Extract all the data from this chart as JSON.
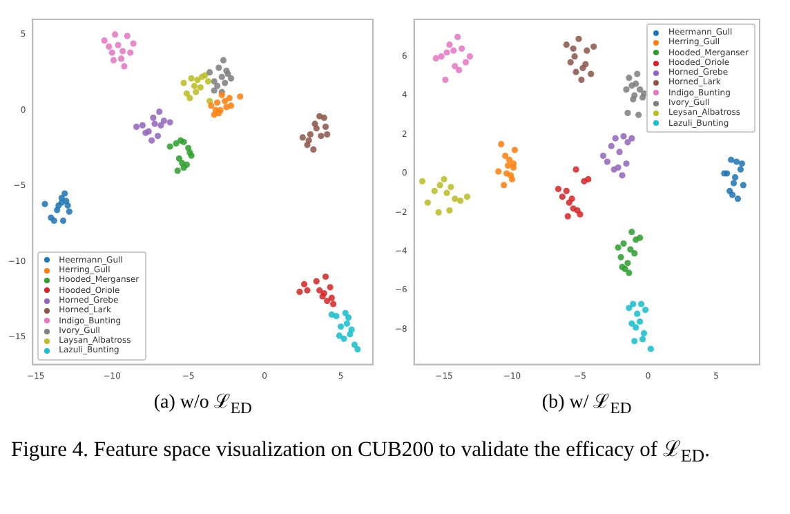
{
  "chart_data": [
    {
      "type": "scatter",
      "xlabel": "(a) w/o ℒ$_{ED}$",
      "marker": "circle",
      "legend": "bottom left",
      "annotations": [
        "Figure 4.  Feature space visualization on CUB200 to validate the efficacy of ℒ$_{ED}$."
      ],
      "xlim": [
        -15.2,
        7.1
      ],
      "xticks": [
        -15,
        -10,
        -5,
        0,
        5
      ],
      "ylim": [
        -16.8,
        6
      ],
      "yticks": [
        -15,
        -10,
        -5,
        0,
        5
      ],
      "series": [
        {
          "name": "Heermann_Gull",
          "color": "#1f77b4",
          "x": [
            -14.4,
            -14.0,
            -13.8,
            -13.5,
            -13.3,
            -13.1,
            -13.0,
            -12.9,
            -13.2,
            -13.6,
            -12.8,
            -13.3
          ],
          "values": [
            -6.2,
            -7.1,
            -7.3,
            -6.3,
            -5.8,
            -5.5,
            -6.0,
            -6.3,
            -7.3,
            -6.6,
            -6.7,
            -6.1
          ]
        },
        {
          "name": "Herring_Gull",
          "color": "#ff7f0e",
          "x": [
            -3.5,
            -3.3,
            -3.1,
            -2.9,
            -2.3,
            -3.0,
            -2.5,
            -2.2,
            -1.6,
            -2.8,
            -3.2,
            -2.6
          ],
          "values": [
            0.3,
            -0.3,
            0.5,
            0.0,
            0.8,
            -0.2,
            0.2,
            0.3,
            0.9,
            1.0,
            0.0,
            0.6
          ]
        },
        {
          "name": "Hooded_Merganser",
          "color": "#2ca02c",
          "x": [
            -6.2,
            -5.8,
            -5.5,
            -5.3,
            -5.0,
            -4.8,
            -5.6,
            -5.4,
            -5.1,
            -5.7,
            -4.9,
            -5.3
          ],
          "values": [
            -2.4,
            -2.2,
            -2.0,
            -2.1,
            -2.5,
            -3.0,
            -3.2,
            -3.5,
            -3.6,
            -4.0,
            -2.8,
            -3.8
          ]
        },
        {
          "name": "Hooded_Oriole",
          "color": "#d62728",
          "x": [
            2.3,
            2.6,
            2.8,
            3.4,
            3.6,
            3.8,
            4.0,
            4.1,
            4.3,
            4.4,
            4.5,
            3.9
          ],
          "values": [
            -12.0,
            -11.5,
            -11.9,
            -11.3,
            -11.9,
            -12.3,
            -11.0,
            -12.6,
            -11.7,
            -12.4,
            -12.8,
            -12.1
          ]
        },
        {
          "name": "Horned_Grebe",
          "color": "#9467bd",
          "x": [
            -8.4,
            -8.0,
            -7.6,
            -7.2,
            -6.9,
            -6.6,
            -6.2,
            -7.4,
            -7.0,
            -7.8,
            -6.8,
            -7.3
          ],
          "values": [
            -1.1,
            -1.0,
            -1.4,
            -0.9,
            -0.1,
            -0.7,
            -0.8,
            -2.0,
            -1.7,
            -1.5,
            -1.0,
            -0.5
          ]
        },
        {
          "name": "Horned_Lark",
          "color": "#8c564b",
          "x": [
            2.5,
            2.8,
            3.0,
            3.2,
            3.4,
            3.6,
            3.7,
            3.9,
            4.0,
            4.1,
            3.3,
            2.9
          ],
          "values": [
            -1.8,
            -2.3,
            -1.6,
            -2.6,
            -1.2,
            -0.4,
            -1.7,
            -0.5,
            -1.1,
            -1.6,
            -0.9,
            -2.0
          ]
        },
        {
          "name": "Indigo_Bunting",
          "color": "#e377c2",
          "x": [
            -10.5,
            -10.2,
            -10.0,
            -9.8,
            -9.6,
            -9.3,
            -9.0,
            -8.8,
            -8.6,
            -9.4,
            -9.9,
            -9.2
          ],
          "values": [
            4.6,
            4.2,
            3.8,
            5.0,
            4.3,
            3.9,
            4.9,
            3.8,
            4.4,
            3.4,
            3.3,
            2.9
          ]
        },
        {
          "name": "Ivory_Gull",
          "color": "#7f7f7f",
          "x": [
            -3.6,
            -3.3,
            -3.0,
            -2.8,
            -2.6,
            -2.4,
            -2.2,
            -3.3,
            -2.7,
            -3.1,
            -2.5,
            -2.8
          ],
          "values": [
            2.5,
            1.9,
            2.8,
            2.2,
            1.8,
            2.4,
            2.1,
            1.3,
            3.3,
            1.6,
            2.6,
            1.2
          ]
        },
        {
          "name": "Laysan_Albatross",
          "color": "#bcbd22",
          "x": [
            -5.3,
            -5.1,
            -4.9,
            -4.6,
            -4.4,
            -4.2,
            -3.9,
            -3.7,
            -4.5,
            -4.8,
            -4.1,
            -3.6
          ],
          "values": [
            1.8,
            1.1,
            0.8,
            1.6,
            2.0,
            1.5,
            2.3,
            1.9,
            1.2,
            2.1,
            2.2,
            0.6
          ]
        },
        {
          "name": "Lazuli_Bunting",
          "color": "#17becf",
          "x": [
            4.4,
            4.7,
            5.0,
            5.3,
            5.5,
            5.7,
            4.9,
            5.2,
            5.6,
            5.9,
            6.1,
            5.4
          ],
          "values": [
            -13.5,
            -13.6,
            -14.3,
            -13.4,
            -13.7,
            -14.5,
            -14.9,
            -15.1,
            -14.8,
            -15.5,
            -15.8,
            -14.1
          ]
        }
      ]
    },
    {
      "type": "scatter",
      "xlabel": "(b) w/ ℒ$_{ED}$",
      "marker": "circle",
      "legend": "top right",
      "xlim": [
        -17.2,
        8.2
      ],
      "xticks": [
        -15,
        -10,
        -5,
        0,
        5
      ],
      "ylim": [
        -9.8,
        7.9
      ],
      "yticks": [
        -8,
        -6,
        -4,
        -2,
        0,
        2,
        4,
        6
      ],
      "series": [
        {
          "name": "Heermann_Gull",
          "color": "#1f77b4",
          "x": [
            5.6,
            5.8,
            6.1,
            6.3,
            6.5,
            6.8,
            7.0,
            6.2,
            6.6,
            6.0,
            6.9,
            6.4
          ],
          "values": [
            0.0,
            0.0,
            0.7,
            -0.5,
            0.6,
            0.2,
            -0.6,
            -1.1,
            -1.3,
            -0.9,
            0.5,
            -0.2
          ]
        },
        {
          "name": "Herring_Gull",
          "color": "#ff7f0e",
          "x": [
            -11.0,
            -10.8,
            -10.5,
            -10.3,
            -10.1,
            -9.9,
            -9.8,
            -10.6,
            -10.2,
            -10.0,
            -10.4,
            -9.9
          ],
          "values": [
            0.1,
            1.5,
            0.9,
            0.4,
            -0.1,
            0.3,
            1.2,
            -0.6,
            0.7,
            -0.3,
            0.0,
            0.5
          ]
        },
        {
          "name": "Hooded_Merganser",
          "color": "#2ca02c",
          "x": [
            -2.2,
            -2.0,
            -1.8,
            -1.5,
            -1.2,
            -0.9,
            -0.6,
            -1.7,
            -1.4,
            -1.0,
            -1.9,
            -1.3
          ],
          "values": [
            -3.8,
            -4.3,
            -3.6,
            -4.6,
            -3.0,
            -3.4,
            -3.3,
            -4.9,
            -5.1,
            -4.1,
            -4.8,
            -3.9
          ]
        },
        {
          "name": "Hooded_Oriole",
          "color": "#d62728",
          "x": [
            -6.6,
            -6.3,
            -6.0,
            -5.8,
            -5.6,
            -5.2,
            -5.0,
            -4.4,
            -4.7,
            -5.5,
            -5.9,
            -5.3
          ],
          "values": [
            -0.8,
            -1.2,
            -0.9,
            -1.5,
            -1.3,
            -1.9,
            -2.1,
            -0.3,
            -0.4,
            -1.8,
            -2.2,
            0.2
          ]
        },
        {
          "name": "Horned_Grebe",
          "color": "#9467bd",
          "x": [
            -3.3,
            -3.0,
            -2.7,
            -2.4,
            -2.1,
            -1.8,
            -1.5,
            -1.2,
            -2.2,
            -1.9,
            -1.6,
            -2.5
          ],
          "values": [
            0.9,
            0.6,
            1.4,
            1.8,
            1.1,
            1.9,
            1.6,
            1.8,
            0.3,
            -0.1,
            0.5,
            0.2
          ]
        },
        {
          "name": "Horned_Lark",
          "color": "#8c564b",
          "x": [
            -6.0,
            -5.7,
            -5.4,
            -5.1,
            -4.8,
            -4.5,
            -4.2,
            -4.0,
            -5.3,
            -4.9,
            -4.6,
            -5.5
          ],
          "values": [
            6.6,
            5.7,
            6.0,
            6.9,
            5.4,
            6.3,
            5.1,
            6.5,
            5.2,
            4.8,
            5.6,
            6.4
          ]
        },
        {
          "name": "Indigo_Bunting",
          "color": "#e377c2",
          "x": [
            -15.6,
            -15.2,
            -14.9,
            -14.6,
            -14.3,
            -14.0,
            -13.7,
            -13.4,
            -13.1,
            -14.2,
            -14.8,
            -13.9
          ],
          "values": [
            5.9,
            6.0,
            4.8,
            6.6,
            6.3,
            7.0,
            6.4,
            5.7,
            6.0,
            5.5,
            6.2,
            5.3
          ]
        },
        {
          "name": "Ivory_Gull",
          "color": "#7f7f7f",
          "x": [
            -1.6,
            -1.4,
            -1.2,
            -1.0,
            -0.8,
            -0.6,
            -0.4,
            -0.3,
            -1.1,
            -0.7,
            -1.5,
            -0.9
          ],
          "values": [
            4.3,
            4.9,
            4.5,
            4.0,
            5.1,
            4.3,
            3.9,
            4.1,
            3.8,
            3.0,
            3.1,
            4.6
          ]
        },
        {
          "name": "Leysan_Albatross",
          "color": "#bcbd22",
          "x": [
            -16.6,
            -16.2,
            -15.7,
            -15.3,
            -15.0,
            -14.8,
            -14.5,
            -14.2,
            -13.8,
            -13.3,
            -15.4,
            -14.6
          ],
          "values": [
            -0.4,
            -1.5,
            -0.9,
            -0.6,
            -0.3,
            -1.0,
            -0.7,
            -1.3,
            -1.4,
            -1.2,
            -2.0,
            -1.9
          ]
        },
        {
          "name": "Lazuli_Bunting",
          "color": "#17becf",
          "x": [
            -1.4,
            -1.1,
            -0.8,
            -0.5,
            -0.2,
            -1.2,
            -0.9,
            -0.6,
            -0.3,
            0.2,
            -1.0,
            -0.4
          ],
          "values": [
            -6.9,
            -6.7,
            -7.2,
            -6.7,
            -7.0,
            -7.7,
            -7.9,
            -7.6,
            -8.2,
            -9.0,
            -8.6,
            -8.5
          ]
        }
      ]
    }
  ]
}
